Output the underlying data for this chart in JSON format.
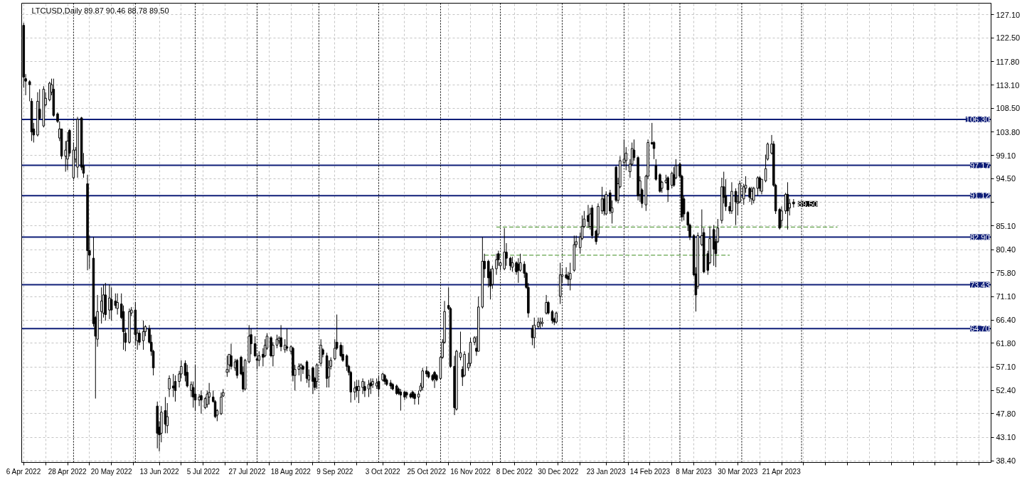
{
  "chart_data": {
    "type": "candlestick",
    "title": "LTCUSD,Daily 89.87 90.46 88.78 89.50",
    "color": "#000000",
    "grid": true,
    "xlim": [
      "2022-04-05",
      "2023-08-04"
    ],
    "ylim": [
      38.1,
      129.4
    ],
    "xticks": [
      {
        "value": "2022-04-06",
        "label": "6 Apr 2022"
      },
      {
        "value": "2022-04-17",
        "label": null
      },
      {
        "value": "2022-04-28",
        "label": "28 Apr 2022"
      },
      {
        "value": "2022-05-09",
        "label": null
      },
      {
        "value": "2022-05-20",
        "label": "20 May 2022"
      },
      {
        "value": "2022-05-31",
        "label": null
      },
      {
        "value": "2022-06-13",
        "label": "13 Jun 2022"
      },
      {
        "value": "2022-06-24",
        "label": null
      },
      {
        "value": "2022-07-05",
        "label": "5 Jul 2022"
      },
      {
        "value": "2022-07-16",
        "label": null
      },
      {
        "value": "2022-07-27",
        "label": "27 Jul 2022"
      },
      {
        "value": "2022-08-07",
        "label": null
      },
      {
        "value": "2022-08-18",
        "label": "18 Aug 2022"
      },
      {
        "value": "2022-08-29",
        "label": null
      },
      {
        "value": "2022-09-09",
        "label": "9 Sep 2022"
      },
      {
        "value": "2022-09-20",
        "label": null
      },
      {
        "value": "2022-10-03",
        "label": "3 Oct 2022"
      },
      {
        "value": "2022-10-14",
        "label": null
      },
      {
        "value": "2022-10-25",
        "label": "25 Oct 2022"
      },
      {
        "value": "2022-11-05",
        "label": null
      },
      {
        "value": "2022-11-16",
        "label": "16 Nov 2022"
      },
      {
        "value": "2022-11-27",
        "label": null
      },
      {
        "value": "2022-12-08",
        "label": "8 Dec 2022"
      },
      {
        "value": "2022-12-19",
        "label": null
      },
      {
        "value": "2022-12-30",
        "label": "30 Dec 2022"
      },
      {
        "value": "2023-01-10",
        "label": null
      },
      {
        "value": "2023-01-23",
        "label": "23 Jan 2023"
      },
      {
        "value": "2023-02-03",
        "label": null
      },
      {
        "value": "2023-02-14",
        "label": "14 Feb 2023"
      },
      {
        "value": "2023-02-25",
        "label": null
      },
      {
        "value": "2023-03-08",
        "label": "8 Mar 2023"
      },
      {
        "value": "2023-03-19",
        "label": null
      },
      {
        "value": "2023-03-30",
        "label": "30 Mar 2023"
      },
      {
        "value": "2023-04-10",
        "label": null
      },
      {
        "value": "2023-04-21",
        "label": "21 Apr 2023"
      },
      {
        "value": "2023-05-02",
        "label": null
      },
      {
        "value": "2023-05-13",
        "label": null
      },
      {
        "value": "2023-05-24",
        "label": null
      },
      {
        "value": "2023-06-04",
        "label": null
      },
      {
        "value": "2023-06-15",
        "label": null
      },
      {
        "value": "2023-06-26",
        "label": null
      },
      {
        "value": "2023-07-07",
        "label": null
      },
      {
        "value": "2023-07-18",
        "label": null
      },
      {
        "value": "2023-07-29",
        "label": null
      }
    ],
    "yticks": [
      {
        "value": 127.1,
        "label": "127.10"
      },
      {
        "value": 122.5,
        "label": "122.50"
      },
      {
        "value": 117.8,
        "label": "117.80"
      },
      {
        "value": 113.1,
        "label": "113.10"
      },
      {
        "value": 108.5,
        "label": "108.50"
      },
      {
        "value": 103.8,
        "label": "103.80"
      },
      {
        "value": 99.1,
        "label": "99.10"
      },
      {
        "value": 94.5,
        "label": "94.50"
      },
      {
        "value": 89.8,
        "label": null
      },
      {
        "value": 85.1,
        "label": "85.10"
      },
      {
        "value": 80.4,
        "label": "80.40"
      },
      {
        "value": 75.8,
        "label": "75.80"
      },
      {
        "value": 71.1,
        "label": "71.10"
      },
      {
        "value": 66.4,
        "label": "66.40"
      },
      {
        "value": 61.8,
        "label": "61.80"
      },
      {
        "value": 57.1,
        "label": "57.10"
      },
      {
        "value": 52.4,
        "label": "52.40"
      },
      {
        "value": 47.8,
        "label": "47.80"
      },
      {
        "value": 43.1,
        "label": "43.10"
      },
      {
        "value": 38.4,
        "label": "38.40"
      }
    ],
    "x": [
      "2022-04-06",
      "2022-04-07",
      "2022-04-09",
      "2022-04-10",
      "2022-04-11",
      "2022-04-13",
      "2022-04-14",
      "2022-04-16",
      "2022-04-17",
      "2022-04-19",
      "2022-04-20",
      "2022-04-21",
      "2022-04-23",
      "2022-04-24",
      "2022-04-25",
      "2022-04-27",
      "2022-04-28",
      "2022-04-29",
      "2022-05-01",
      "2022-05-02",
      "2022-05-03",
      "2022-05-05",
      "2022-05-06",
      "2022-05-08",
      "2022-05-09",
      "2022-05-11",
      "2022-05-12",
      "2022-05-13",
      "2022-05-15",
      "2022-05-16",
      "2022-05-17",
      "2022-05-19",
      "2022-05-20",
      "2022-05-22",
      "2022-05-23",
      "2022-05-25",
      "2022-05-26",
      "2022-05-27",
      "2022-05-29",
      "2022-05-30",
      "2022-06-01",
      "2022-06-02",
      "2022-06-03",
      "2022-06-05",
      "2022-06-06",
      "2022-06-08",
      "2022-06-09",
      "2022-06-10",
      "2022-06-12",
      "2022-06-13",
      "2022-06-14",
      "2022-06-16",
      "2022-06-17",
      "2022-06-18",
      "2022-06-20",
      "2022-06-21",
      "2022-06-23",
      "2022-06-24",
      "2022-06-26",
      "2022-06-27",
      "2022-06-29",
      "2022-06-30",
      "2022-07-01",
      "2022-07-03",
      "2022-07-04",
      "2022-07-06",
      "2022-07-07",
      "2022-07-08",
      "2022-07-10",
      "2022-07-11",
      "2022-07-12",
      "2022-07-14",
      "2022-07-15",
      "2022-07-17",
      "2022-07-18",
      "2022-07-19",
      "2022-07-21",
      "2022-07-22",
      "2022-07-24",
      "2022-07-25",
      "2022-07-26",
      "2022-07-28",
      "2022-07-29",
      "2022-07-31",
      "2022-08-01",
      "2022-08-02",
      "2022-08-04",
      "2022-08-05",
      "2022-08-06",
      "2022-08-08",
      "2022-08-09",
      "2022-08-11",
      "2022-08-12",
      "2022-08-13",
      "2022-08-15",
      "2022-08-16",
      "2022-08-18",
      "2022-08-19",
      "2022-08-20",
      "2022-08-22",
      "2022-08-23",
      "2022-08-24",
      "2022-08-26",
      "2022-08-27",
      "2022-08-29",
      "2022-08-30",
      "2022-08-31",
      "2022-09-02",
      "2022-09-03",
      "2022-09-05",
      "2022-09-06",
      "2022-09-07",
      "2022-09-09",
      "2022-09-10",
      "2022-09-12",
      "2022-09-13",
      "2022-09-15",
      "2022-09-16",
      "2022-09-17",
      "2022-09-19",
      "2022-09-20",
      "2022-09-21",
      "2022-09-23",
      "2022-09-24",
      "2022-09-26",
      "2022-09-27",
      "2022-09-28",
      "2022-09-30",
      "2022-10-01",
      "2022-10-03",
      "2022-10-04",
      "2022-10-05",
      "2022-10-07",
      "2022-10-08",
      "2022-10-10",
      "2022-10-11",
      "2022-10-12",
      "2022-10-14",
      "2022-10-15",
      "2022-10-17",
      "2022-10-18",
      "2022-10-19",
      "2022-10-21",
      "2022-10-22",
      "2022-10-23",
      "2022-10-25",
      "2022-10-26",
      "2022-10-28",
      "2022-10-29",
      "2022-10-30",
      "2022-11-01",
      "2022-11-02",
      "2022-11-03",
      "2022-11-05",
      "2022-11-06",
      "2022-11-08",
      "2022-11-09",
      "2022-11-11",
      "2022-11-12",
      "2022-11-13",
      "2022-11-15",
      "2022-11-16",
      "2022-11-18",
      "2022-11-19",
      "2022-11-20",
      "2022-11-22",
      "2022-11-23",
      "2022-11-25",
      "2022-11-26",
      "2022-11-27",
      "2022-11-29",
      "2022-11-30",
      "2022-12-01",
      "2022-12-03",
      "2022-12-04",
      "2022-12-06",
      "2022-12-07",
      "2022-12-09",
      "2022-12-10",
      "2022-12-11",
      "2022-12-13",
      "2022-12-14",
      "2022-12-15",
      "2022-12-17",
      "2022-12-18",
      "2022-12-20",
      "2022-12-21",
      "2022-12-22",
      "2022-12-24",
      "2022-12-25",
      "2022-12-27",
      "2022-12-28",
      "2022-12-29",
      "2022-12-31",
      "2023-01-01",
      "2023-01-03",
      "2023-01-04",
      "2023-01-05",
      "2023-01-07",
      "2023-01-08",
      "2023-01-10",
      "2023-01-11",
      "2023-01-12",
      "2023-01-14",
      "2023-01-15",
      "2023-01-16",
      "2023-01-18",
      "2023-01-19",
      "2023-01-21",
      "2023-01-22",
      "2023-01-23",
      "2023-01-25",
      "2023-01-26",
      "2023-01-28",
      "2023-01-29",
      "2023-01-30",
      "2023-02-01",
      "2023-02-02",
      "2023-02-04",
      "2023-02-05",
      "2023-02-06",
      "2023-02-08",
      "2023-02-09",
      "2023-02-10",
      "2023-02-12",
      "2023-02-13",
      "2023-02-15",
      "2023-02-16",
      "2023-02-17",
      "2023-02-19",
      "2023-02-20",
      "2023-02-22",
      "2023-02-23",
      "2023-02-25",
      "2023-02-26",
      "2023-02-27",
      "2023-03-01",
      "2023-03-02",
      "2023-03-03",
      "2023-03-05",
      "2023-03-06",
      "2023-03-08",
      "2023-03-09",
      "2023-03-10",
      "2023-03-12",
      "2023-03-13",
      "2023-03-15",
      "2023-03-16",
      "2023-03-18",
      "2023-03-19",
      "2023-03-20",
      "2023-03-22",
      "2023-03-23",
      "2023-03-24",
      "2023-03-26",
      "2023-03-27",
      "2023-03-29",
      "2023-03-30",
      "2023-03-31",
      "2023-04-02",
      "2023-04-03",
      "2023-04-05",
      "2023-04-06",
      "2023-04-07",
      "2023-04-09",
      "2023-04-10",
      "2023-04-11",
      "2023-04-13",
      "2023-04-14",
      "2023-04-16",
      "2023-04-17",
      "2023-04-18",
      "2023-04-20",
      "2023-04-21",
      "2023-04-23",
      "2023-04-24",
      "2023-04-25",
      "2023-04-27"
    ],
    "ohlc": [
      [
        125.0,
        125.5,
        112.6,
        114.7
      ],
      [
        114.4,
        115.3,
        111.1,
        113.9
      ],
      [
        113.8,
        114.1,
        109.9,
        113.2
      ],
      [
        109.9,
        110.5,
        102.0,
        103.8
      ],
      [
        104.4,
        105.6,
        101.7,
        103.2
      ],
      [
        103.2,
        111.7,
        102.9,
        109.9
      ],
      [
        108.3,
        112.3,
        106.2,
        106.5
      ],
      [
        105.0,
        112.9,
        104.7,
        112.3
      ],
      [
        109.2,
        111.7,
        108.9,
        110.5
      ],
      [
        110.2,
        113.8,
        109.9,
        113.5
      ],
      [
        111.7,
        114.4,
        111.1,
        113.2
      ],
      [
        112.3,
        114.4,
        106.8,
        107.1
      ],
      [
        107.4,
        107.7,
        105.6,
        105.9
      ],
      [
        102.6,
        105.9,
        102.0,
        104.4
      ],
      [
        104.4,
        104.4,
        98.4,
        99.0
      ],
      [
        99.0,
        102.0,
        95.9,
        100.2
      ],
      [
        98.4,
        103.8,
        96.2,
        102.0
      ],
      [
        104.1,
        104.4,
        98.9,
        99.6
      ],
      [
        94.7,
        101.7,
        94.4,
        100.2
      ],
      [
        98.4,
        100.8,
        97.7,
        100.2
      ],
      [
        96.8,
        106.8,
        94.7,
        106.3
      ],
      [
        106.6,
        106.8,
        96.2,
        96.8
      ],
      [
        97.1,
        99.6,
        94.7,
        95.6
      ],
      [
        93.5,
        95.3,
        76.3,
        80.2
      ],
      [
        80.2,
        83.2,
        76.6,
        79.3
      ],
      [
        78.7,
        82.9,
        65.1,
        65.7
      ],
      [
        66.9,
        67.2,
        50.8,
        63.2
      ],
      [
        62.6,
        71.4,
        61.1,
        68.1
      ],
      [
        68.1,
        72.9,
        65.7,
        70.2
      ],
      [
        67.8,
        73.5,
        66.9,
        71.4
      ],
      [
        71.4,
        73.8,
        66.3,
        67.5
      ],
      [
        68.4,
        73.5,
        66.6,
        70.8
      ],
      [
        70.5,
        72.9,
        66.3,
        68.4
      ],
      [
        70.2,
        71.7,
        68.7,
        69.3
      ],
      [
        68.7,
        71.7,
        67.5,
        69.9
      ],
      [
        69.6,
        71.7,
        66.6,
        66.9
      ],
      [
        68.1,
        69.3,
        60.5,
        64.1
      ],
      [
        63.8,
        64.7,
        60.2,
        62.0
      ],
      [
        62.0,
        68.7,
        61.7,
        68.1
      ],
      [
        67.8,
        69.0,
        67.2,
        68.4
      ],
      [
        68.4,
        69.9,
        61.4,
        63.5
      ],
      [
        62.3,
        64.7,
        60.5,
        63.8
      ],
      [
        63.8,
        64.4,
        61.4,
        62.0
      ],
      [
        62.3,
        66.3,
        60.5,
        64.1
      ],
      [
        64.1,
        65.4,
        63.2,
        65.1
      ],
      [
        64.7,
        65.4,
        61.7,
        62.0
      ],
      [
        62.0,
        63.5,
        59.3,
        60.2
      ],
      [
        60.2,
        60.5,
        55.4,
        56.9
      ],
      [
        49.3,
        50.2,
        40.9,
        43.9
      ],
      [
        45.1,
        46.3,
        40.3,
        43.6
      ],
      [
        43.9,
        49.3,
        42.1,
        48.1
      ],
      [
        48.4,
        51.1,
        43.9,
        45.7
      ],
      [
        45.4,
        49.9,
        43.9,
        47.2
      ],
      [
        52.7,
        55.4,
        51.1,
        54.8
      ],
      [
        53.3,
        55.7,
        51.1,
        52.9
      ],
      [
        54.2,
        55.4,
        50.2,
        52.4
      ],
      [
        54.2,
        56.3,
        53.0,
        55.7
      ],
      [
        55.7,
        58.4,
        54.8,
        57.2
      ],
      [
        57.8,
        58.4,
        54.2,
        55.4
      ],
      [
        56.0,
        57.5,
        53.0,
        53.3
      ],
      [
        52.4,
        54.2,
        51.1,
        53.6
      ],
      [
        53.0,
        54.2,
        49.0,
        51.1
      ],
      [
        51.7,
        57.5,
        48.4,
        50.5
      ],
      [
        50.5,
        51.7,
        49.3,
        51.1
      ],
      [
        51.4,
        52.4,
        47.8,
        50.5
      ],
      [
        49.0,
        51.1,
        48.7,
        50.8
      ],
      [
        49.6,
        52.4,
        49.0,
        51.7
      ],
      [
        51.1,
        53.9,
        49.6,
        52.0
      ],
      [
        51.1,
        52.4,
        50.0,
        50.2
      ],
      [
        50.2,
        50.5,
        46.9,
        47.2
      ],
      [
        47.5,
        48.7,
        46.3,
        48.4
      ],
      [
        47.8,
        52.0,
        47.5,
        51.1
      ],
      [
        51.3,
        52.7,
        51.1,
        52.0
      ],
      [
        56.0,
        59.3,
        55.1,
        56.6
      ],
      [
        57.5,
        59.6,
        56.0,
        59.6
      ],
      [
        59.3,
        61.7,
        56.6,
        57.2
      ],
      [
        56.9,
        58.7,
        56.3,
        58.1
      ],
      [
        58.4,
        58.7,
        54.8,
        55.4
      ],
      [
        59.0,
        59.3,
        55.4,
        55.7
      ],
      [
        56.0,
        57.2,
        52.1,
        52.7
      ],
      [
        52.7,
        58.7,
        52.4,
        58.4
      ],
      [
        58.1,
        65.4,
        57.8,
        63.2
      ],
      [
        63.5,
        64.7,
        59.6,
        61.7
      ],
      [
        61.7,
        63.2,
        59.0,
        59.3
      ],
      [
        58.7,
        59.6,
        56.6,
        58.4
      ],
      [
        58.4,
        60.2,
        57.2,
        59.3
      ],
      [
        59.6,
        60.8,
        57.2,
        59.0
      ],
      [
        59.3,
        62.6,
        59.0,
        61.4
      ],
      [
        60.8,
        63.8,
        60.5,
        63.2
      ],
      [
        62.9,
        63.2,
        59.0,
        59.3
      ],
      [
        59.3,
        62.0,
        57.2,
        61.4
      ],
      [
        61.4,
        63.5,
        60.8,
        62.6
      ],
      [
        62.3,
        63.2,
        61.7,
        62.8
      ],
      [
        62.9,
        65.4,
        60.2,
        61.1
      ],
      [
        60.5,
        62.6,
        59.9,
        61.4
      ],
      [
        61.1,
        64.7,
        60.2,
        60.8
      ],
      [
        60.2,
        61.4,
        59.6,
        61.1
      ],
      [
        60.8,
        61.1,
        54.2,
        55.4
      ],
      [
        55.4,
        57.5,
        52.4,
        56.6
      ],
      [
        56.6,
        57.8,
        55.4,
        57.2
      ],
      [
        56.9,
        57.8,
        54.2,
        57.5
      ],
      [
        57.2,
        57.5,
        55.7,
        56.6
      ],
      [
        58.1,
        58.4,
        53.9,
        54.8
      ],
      [
        54.5,
        56.6,
        53.0,
        55.4
      ],
      [
        56.9,
        57.2,
        51.7,
        54.2
      ],
      [
        54.8,
        55.1,
        52.4,
        53.0
      ],
      [
        54.2,
        57.8,
        52.7,
        57.5
      ],
      [
        57.8,
        62.6,
        57.2,
        61.4
      ],
      [
        60.5,
        60.8,
        59.0,
        59.6
      ],
      [
        59.3,
        59.9,
        53.0,
        54.8
      ],
      [
        55.1,
        58.4,
        53.0,
        56.9
      ],
      [
        57.2,
        59.0,
        56.6,
        58.4
      ],
      [
        58.7,
        62.6,
        58.4,
        60.8
      ],
      [
        62.0,
        67.5,
        60.5,
        60.8
      ],
      [
        61.4,
        62.0,
        59.0,
        59.3
      ],
      [
        59.6,
        61.4,
        58.1,
        58.4
      ],
      [
        59.3,
        59.6,
        56.3,
        57.2
      ],
      [
        57.2,
        57.5,
        55.4,
        56.0
      ],
      [
        56.0,
        56.3,
        50.0,
        52.1
      ],
      [
        52.1,
        54.2,
        50.5,
        52.9
      ],
      [
        53.2,
        54.5,
        51.1,
        52.4
      ],
      [
        52.4,
        54.5,
        49.9,
        53.2
      ],
      [
        53.0,
        54.8,
        51.7,
        54.2
      ],
      [
        53.2,
        54.2,
        51.1,
        52.4
      ],
      [
        52.7,
        54.5,
        51.1,
        53.6
      ],
      [
        53.9,
        54.8,
        51.7,
        53.3
      ],
      [
        53.6,
        54.8,
        52.9,
        54.2
      ],
      [
        53.3,
        54.8,
        52.7,
        53.9
      ],
      [
        54.2,
        55.4,
        51.1,
        52.7
      ],
      [
        54.5,
        55.9,
        54.2,
        55.7
      ],
      [
        55.4,
        55.7,
        53.6,
        54.2
      ],
      [
        54.5,
        54.8,
        53.3,
        53.6
      ],
      [
        53.9,
        54.5,
        52.7,
        53.3
      ],
      [
        53.6,
        53.9,
        52.4,
        52.7
      ],
      [
        53.3,
        53.6,
        51.5,
        51.8
      ],
      [
        52.7,
        53.0,
        51.5,
        51.8
      ],
      [
        52.1,
        52.7,
        48.4,
        51.5
      ],
      [
        52.1,
        52.4,
        50.5,
        51.1
      ],
      [
        52.0,
        52.2,
        50.8,
        51.5
      ],
      [
        51.7,
        52.0,
        50.8,
        51.1
      ],
      [
        52.1,
        52.4,
        50.8,
        51.1
      ],
      [
        51.7,
        52.0,
        49.6,
        50.8
      ],
      [
        51.1,
        52.4,
        49.6,
        51.7
      ],
      [
        52.4,
        53.9,
        52.1,
        53.3
      ],
      [
        53.0,
        56.9,
        52.4,
        56.3
      ],
      [
        56.3,
        57.2,
        55.1,
        55.7
      ],
      [
        56.0,
        56.3,
        54.8,
        55.1
      ],
      [
        55.4,
        55.7,
        54.2,
        54.5
      ],
      [
        56.0,
        56.3,
        52.9,
        54.8
      ],
      [
        55.4,
        55.7,
        54.2,
        54.5
      ],
      [
        54.8,
        59.3,
        54.5,
        59.0
      ],
      [
        59.0,
        62.6,
        58.7,
        62.0
      ],
      [
        62.0,
        70.2,
        61.7,
        68.1
      ],
      [
        69.3,
        72.9,
        68.4,
        68.7
      ],
      [
        68.7,
        69.0,
        56.9,
        57.2
      ],
      [
        57.2,
        59.3,
        47.5,
        49.0
      ],
      [
        48.7,
        60.5,
        48.4,
        60.2
      ],
      [
        59.0,
        64.1,
        58.4,
        59.9
      ],
      [
        56.6,
        57.2,
        53.3,
        55.1
      ],
      [
        55.4,
        60.2,
        55.1,
        59.6
      ],
      [
        56.9,
        59.9,
        56.3,
        57.8
      ],
      [
        57.8,
        62.9,
        57.2,
        62.0
      ],
      [
        62.0,
        63.2,
        61.4,
        62.9
      ],
      [
        60.8,
        63.2,
        59.3,
        60.2
      ],
      [
        60.2,
        71.1,
        60.2,
        69.0
      ],
      [
        69.0,
        82.9,
        68.7,
        78.1
      ],
      [
        78.1,
        79.6,
        74.8,
        76.6
      ],
      [
        78.1,
        78.4,
        72.9,
        74.8
      ],
      [
        76.0,
        76.6,
        70.5,
        73.2
      ],
      [
        73.5,
        77.2,
        72.6,
        76.6
      ],
      [
        76.6,
        79.6,
        75.4,
        78.4
      ],
      [
        79.6,
        80.2,
        77.2,
        78.4
      ],
      [
        77.2,
        78.1,
        76.3,
        77.8
      ],
      [
        76.6,
        84.7,
        76.3,
        79.9
      ],
      [
        79.9,
        81.7,
        77.2,
        78.7
      ],
      [
        78.7,
        79.0,
        76.3,
        77.2
      ],
      [
        76.9,
        79.0,
        76.0,
        77.8
      ],
      [
        77.8,
        78.1,
        75.4,
        76.0
      ],
      [
        77.5,
        78.7,
        73.8,
        76.3
      ],
      [
        76.3,
        79.6,
        76.0,
        77.8
      ],
      [
        77.5,
        78.1,
        74.8,
        75.7
      ],
      [
        75.7,
        76.0,
        72.6,
        72.9
      ],
      [
        72.9,
        73.8,
        66.9,
        67.8
      ],
      [
        64.7,
        65.4,
        61.4,
        62.9
      ],
      [
        62.9,
        66.9,
        60.8,
        65.4
      ],
      [
        65.1,
        66.9,
        64.7,
        66.0
      ],
      [
        65.7,
        66.9,
        64.7,
        66.0
      ],
      [
        65.7,
        66.9,
        65.1,
        66.0
      ],
      [
        67.8,
        71.4,
        67.5,
        69.9
      ],
      [
        69.9,
        70.2,
        67.5,
        67.8
      ],
      [
        68.1,
        68.4,
        65.7,
        66.3
      ],
      [
        66.6,
        66.9,
        65.4,
        66.0
      ],
      [
        66.0,
        68.1,
        65.7,
        67.8
      ],
      [
        71.1,
        77.8,
        69.6,
        75.4
      ],
      [
        75.1,
        76.6,
        73.8,
        75.4
      ],
      [
        75.4,
        76.9,
        74.5,
        74.8
      ],
      [
        75.1,
        76.0,
        73.2,
        74.5
      ],
      [
        74.5,
        77.8,
        72.3,
        75.7
      ],
      [
        76.3,
        83.2,
        76.0,
        81.4
      ],
      [
        81.4,
        83.2,
        80.8,
        82.0
      ],
      [
        80.8,
        83.8,
        79.6,
        82.9
      ],
      [
        82.6,
        87.2,
        82.3,
        85.0
      ],
      [
        85.0,
        88.1,
        84.7,
        86.5
      ],
      [
        87.2,
        89.3,
        84.7,
        86.0
      ],
      [
        85.0,
        88.7,
        84.4,
        87.5
      ],
      [
        88.7,
        89.3,
        82.6,
        83.2
      ],
      [
        84.1,
        84.4,
        81.4,
        82.0
      ],
      [
        83.5,
        89.6,
        82.9,
        89.0
      ],
      [
        88.1,
        92.9,
        87.5,
        90.5
      ],
      [
        90.5,
        91.1,
        87.2,
        88.1
      ],
      [
        87.5,
        92.0,
        87.2,
        91.4
      ],
      [
        91.7,
        92.3,
        87.5,
        88.1
      ],
      [
        87.8,
        90.2,
        85.6,
        88.7
      ],
      [
        96.8,
        97.1,
        89.9,
        90.2
      ],
      [
        90.2,
        94.7,
        89.6,
        93.5
      ],
      [
        92.9,
        99.0,
        92.6,
        98.1
      ],
      [
        97.7,
        102.3,
        97.1,
        98.4
      ],
      [
        98.1,
        100.8,
        96.2,
        99.6
      ],
      [
        95.9,
        98.4,
        94.7,
        97.4
      ],
      [
        97.4,
        101.7,
        97.1,
        100.5
      ],
      [
        100.2,
        102.3,
        98.1,
        98.7
      ],
      [
        98.7,
        99.0,
        90.2,
        91.1
      ],
      [
        91.4,
        95.0,
        89.9,
        94.1
      ],
      [
        92.3,
        92.6,
        88.7,
        89.6
      ],
      [
        89.3,
        95.3,
        88.1,
        95.0
      ],
      [
        95.0,
        102.3,
        94.4,
        101.7
      ],
      [
        101.7,
        105.6,
        101.3,
        101.4
      ],
      [
        101.7,
        102.0,
        98.4,
        100.5
      ],
      [
        97.1,
        98.4,
        94.1,
        94.4
      ],
      [
        95.3,
        95.6,
        91.7,
        92.0
      ],
      [
        92.6,
        94.1,
        91.7,
        93.8
      ],
      [
        93.8,
        95.3,
        93.5,
        94.2
      ],
      [
        94.7,
        95.0,
        89.9,
        92.3
      ],
      [
        93.2,
        95.9,
        92.6,
        95.6
      ],
      [
        95.3,
        96.8,
        92.9,
        93.2
      ],
      [
        94.7,
        98.4,
        94.4,
        97.1
      ],
      [
        97.4,
        97.7,
        94.7,
        95.0
      ],
      [
        95.0,
        95.3,
        86.0,
        86.9
      ],
      [
        90.5,
        91.1,
        86.2,
        87.5
      ],
      [
        87.8,
        88.1,
        84.1,
        85.3
      ],
      [
        85.3,
        85.6,
        82.3,
        82.9
      ],
      [
        83.2,
        83.5,
        75.1,
        75.4
      ],
      [
        75.6,
        76.9,
        68.1,
        71.4
      ],
      [
        73.1,
        83.8,
        72.6,
        83.2
      ],
      [
        81.4,
        88.4,
        81.1,
        83.2
      ],
      [
        83.8,
        84.7,
        75.7,
        76.0
      ],
      [
        79.6,
        80.2,
        75.4,
        76.3
      ],
      [
        77.8,
        85.0,
        77.5,
        82.6
      ],
      [
        84.4,
        85.3,
        77.2,
        80.5
      ],
      [
        82.0,
        82.6,
        76.9,
        79.6
      ],
      [
        82.0,
        86.5,
        81.7,
        84.7
      ],
      [
        86.2,
        94.7,
        85.6,
        92.9
      ],
      [
        92.9,
        95.9,
        89.6,
        90.8
      ],
      [
        91.1,
        94.4,
        88.1,
        89.0
      ],
      [
        89.0,
        89.9,
        87.5,
        88.1
      ],
      [
        88.1,
        93.8,
        87.5,
        92.0
      ],
      [
        92.0,
        92.6,
        85.3,
        89.9
      ],
      [
        89.6,
        91.1,
        87.2,
        89.9
      ],
      [
        89.9,
        94.1,
        89.6,
        93.5
      ],
      [
        90.5,
        93.5,
        89.3,
        92.9
      ],
      [
        92.6,
        95.0,
        91.7,
        93.2
      ],
      [
        92.6,
        92.9,
        89.9,
        90.8
      ],
      [
        90.5,
        92.9,
        89.3,
        92.0
      ],
      [
        90.2,
        92.9,
        89.6,
        92.6
      ],
      [
        92.6,
        95.0,
        91.1,
        94.7
      ],
      [
        94.7,
        95.0,
        92.0,
        92.6
      ],
      [
        92.0,
        94.4,
        91.4,
        94.4
      ],
      [
        94.1,
        99.3,
        93.8,
        96.5
      ],
      [
        98.4,
        101.7,
        98.1,
        101.4
      ],
      [
        99.6,
        103.2,
        99.3,
        101.4
      ],
      [
        101.4,
        102.0,
        92.9,
        93.2
      ],
      [
        93.2,
        93.5,
        87.5,
        88.1
      ],
      [
        88.4,
        88.7,
        84.4,
        84.7
      ],
      [
        86.2,
        89.0,
        85.0,
        88.1
      ],
      [
        88.1,
        91.7,
        87.5,
        91.4
      ],
      [
        91.4,
        93.8,
        84.4,
        88.1
      ],
      [
        88.7,
        90.5,
        87.2,
        89.6
      ],
      [
        89.87,
        90.46,
        88.78,
        89.5
      ]
    ],
    "series": [
      {
        "type": "line",
        "color": "#3c8c1e",
        "line_style": "dashed",
        "x": [
          "2022-11-29",
          "2023-05-19"
        ],
        "values": [
          84.9,
          84.9
        ]
      },
      {
        "type": "line",
        "color": "#3c8c1e",
        "line_style": "dashed",
        "x": [
          "2022-11-23",
          "2023-03-26"
        ],
        "values": [
          79.3,
          79.3
        ]
      }
    ],
    "ref_lines": [
      {
        "axis": "y",
        "value": 106.3,
        "label": "106.30",
        "color": "#0f1e78",
        "line_style": "solid"
      },
      {
        "axis": "y",
        "value": 97.17,
        "label": "97.17",
        "color": "#0f1e78",
        "line_style": "solid"
      },
      {
        "axis": "y",
        "value": 91.12,
        "label": "91.12",
        "color": "#0f1e78",
        "line_style": "solid"
      },
      {
        "axis": "y",
        "value": 82.9,
        "label": "82.90",
        "color": "#0f1e78",
        "line_style": "solid"
      },
      {
        "axis": "y",
        "value": 73.43,
        "label": "73.43",
        "color": "#0f1e78",
        "line_style": "solid"
      },
      {
        "axis": "y",
        "value": 64.7,
        "label": "64.70",
        "color": "#0f1e78",
        "line_style": "solid"
      },
      {
        "axis": "x",
        "value": "2022-05-01",
        "color": "#000000",
        "line_style": "dotted"
      },
      {
        "axis": "x",
        "value": "2022-06-01",
        "color": "#000000",
        "line_style": "dotted"
      },
      {
        "axis": "x",
        "value": "2022-07-01",
        "color": "#000000",
        "line_style": "dotted"
      },
      {
        "axis": "x",
        "value": "2022-08-01",
        "color": "#000000",
        "line_style": "dotted"
      },
      {
        "axis": "x",
        "value": "2022-09-01",
        "color": "#000000",
        "line_style": "dotted"
      },
      {
        "axis": "x",
        "value": "2022-10-01",
        "color": "#000000",
        "line_style": "dotted"
      },
      {
        "axis": "x",
        "value": "2022-11-01",
        "color": "#000000",
        "line_style": "dotted"
      },
      {
        "axis": "x",
        "value": "2022-12-01",
        "color": "#000000",
        "line_style": "dotted"
      },
      {
        "axis": "x",
        "value": "2023-01-01",
        "color": "#000000",
        "line_style": "dotted"
      },
      {
        "axis": "x",
        "value": "2023-02-01",
        "color": "#000000",
        "line_style": "dotted"
      },
      {
        "axis": "x",
        "value": "2023-03-01",
        "color": "#000000",
        "line_style": "dotted"
      },
      {
        "axis": "x",
        "value": "2023-04-01",
        "color": "#000000",
        "line_style": "dotted"
      },
      {
        "axis": "x",
        "value": "2023-05-01",
        "color": "#000000",
        "line_style": "dotted"
      }
    ],
    "annotations": [
      {
        "text": "89.50",
        "x": "2023-04-27",
        "y": 89.5
      }
    ]
  }
}
